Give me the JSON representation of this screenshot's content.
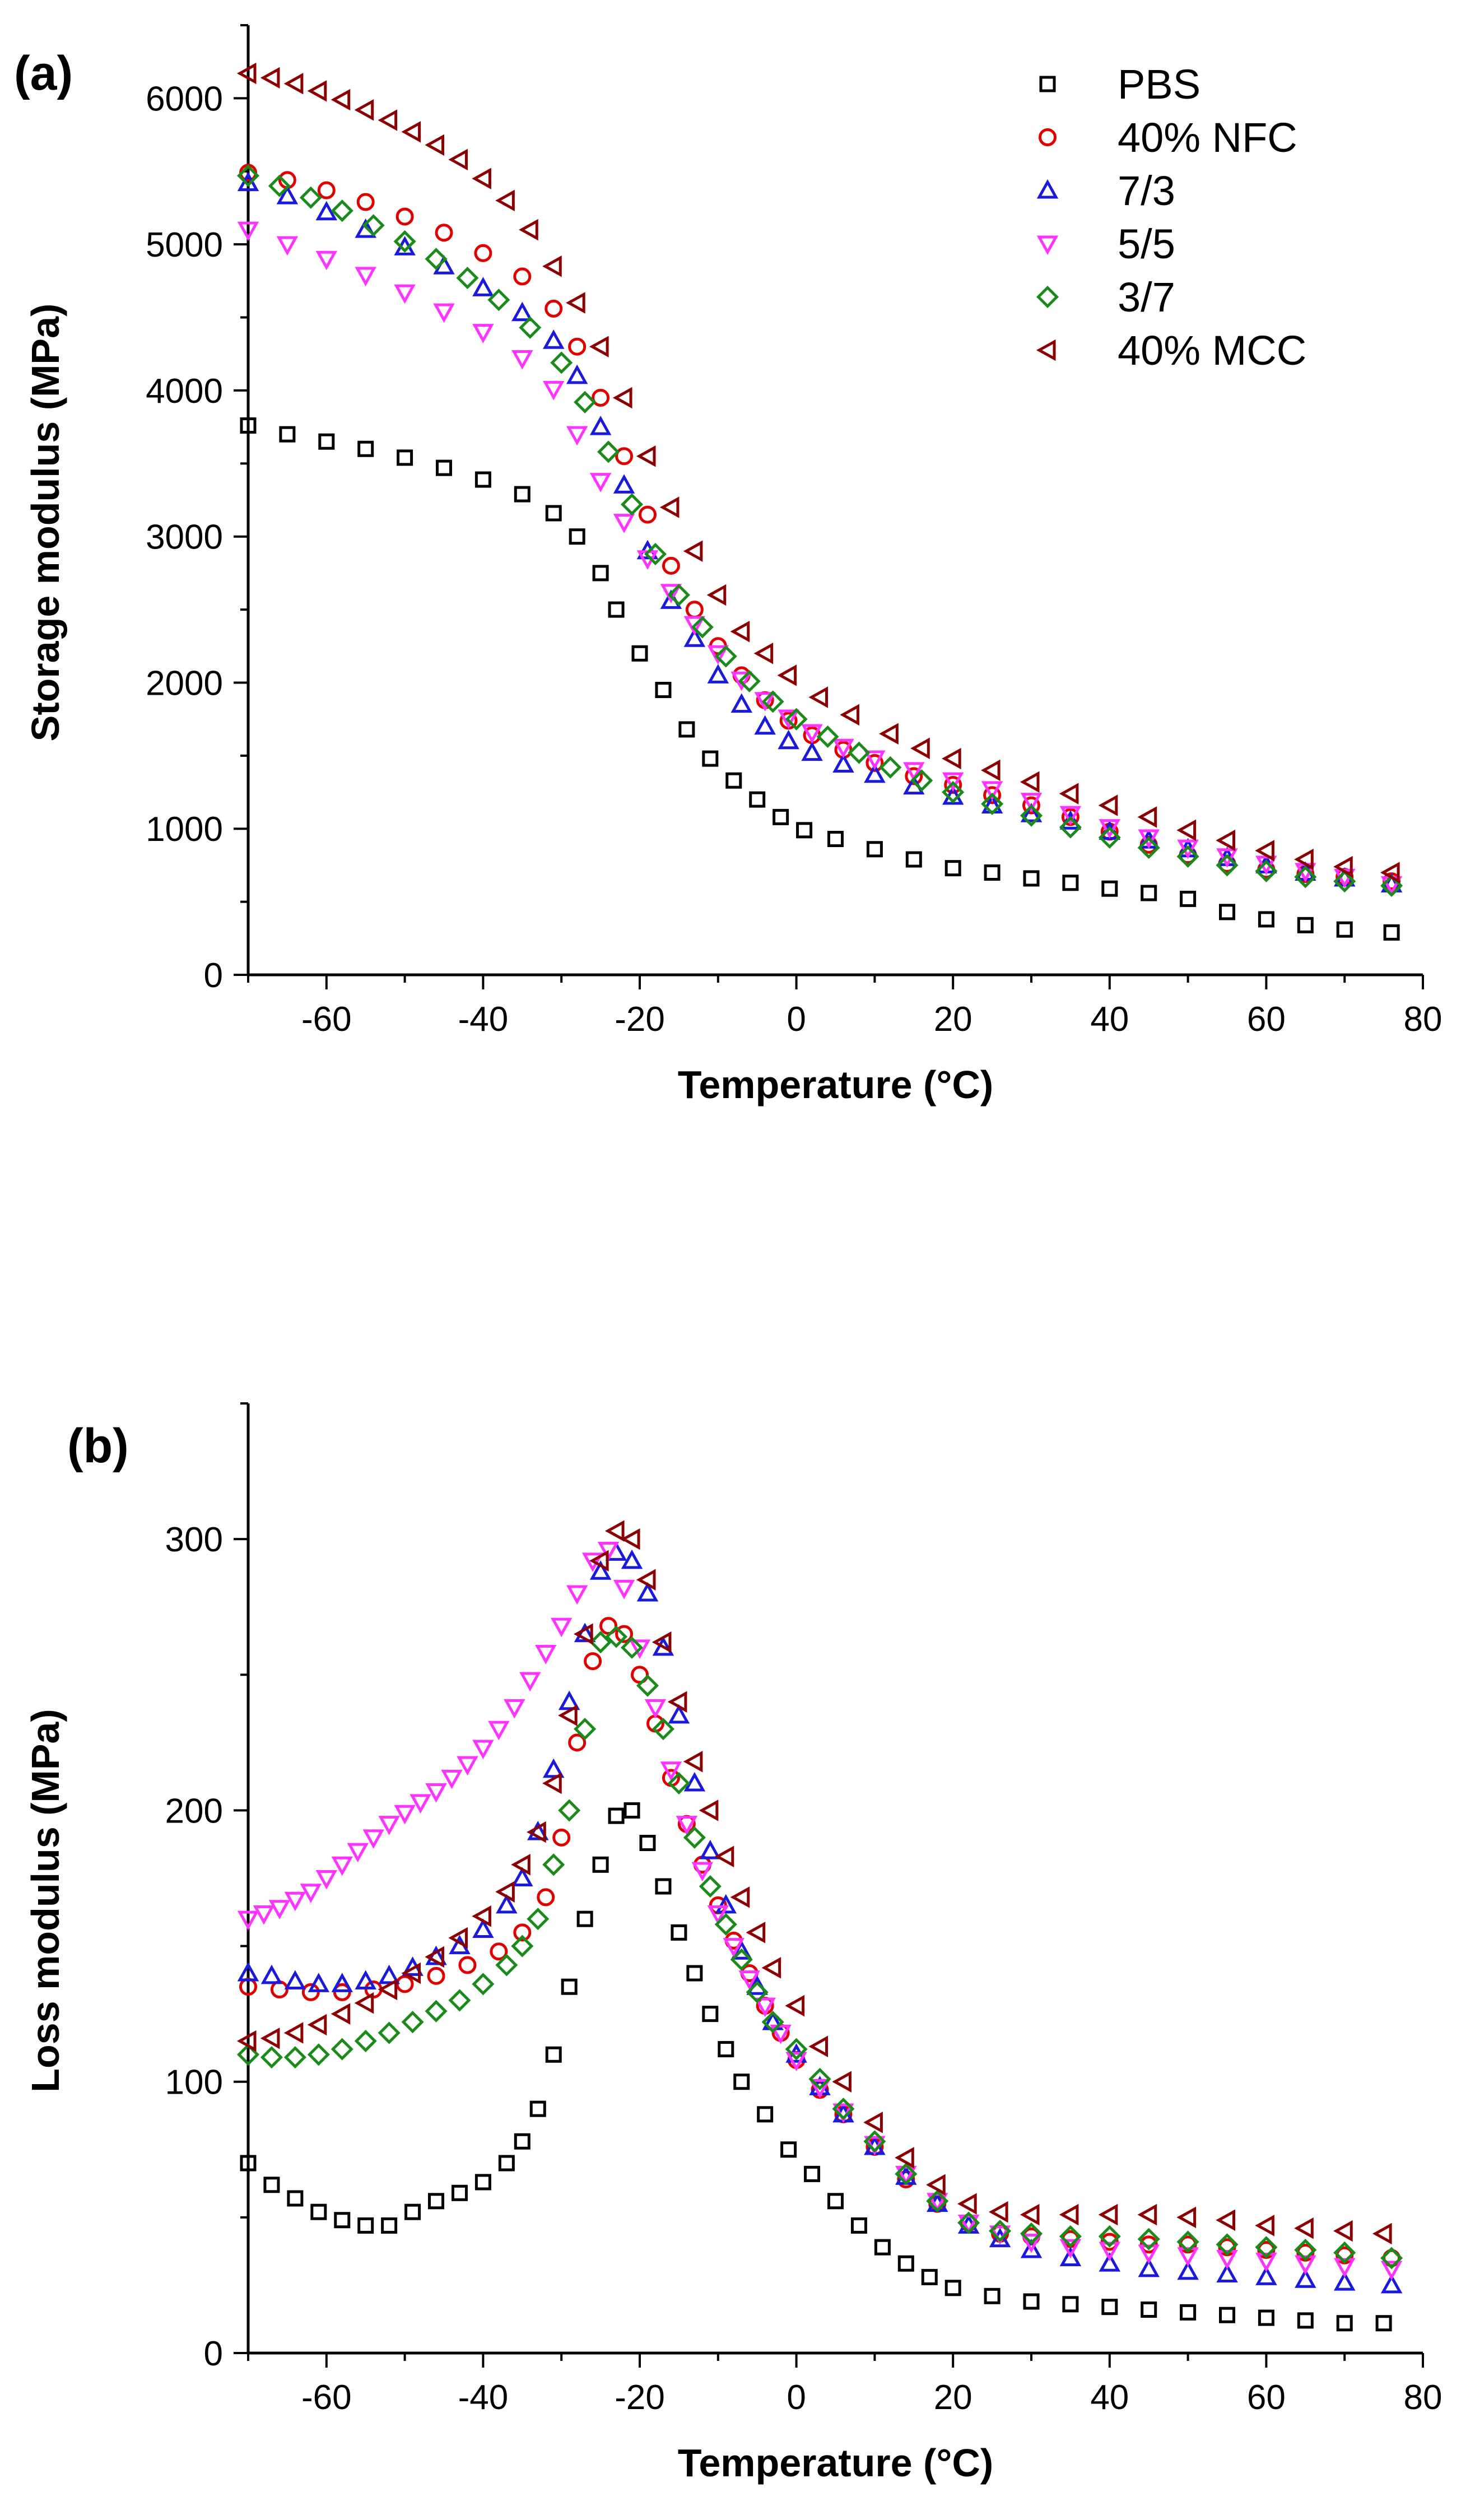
{
  "chart_data": [
    {
      "type": "scatter",
      "panel_label": "(a)",
      "title": "",
      "xlabel": "Temperature (°C)",
      "ylabel": "Storage modulus (MPa)",
      "xlim": [
        -70,
        80
      ],
      "ylim": [
        0,
        6500
      ],
      "xticks": [
        -60,
        -40,
        -20,
        0,
        20,
        40,
        60,
        80
      ],
      "yticks": [
        0,
        1000,
        2000,
        3000,
        4000,
        5000,
        6000
      ],
      "legend_position": "top-right",
      "series": [
        {
          "name": "PBS",
          "marker": "square",
          "color": "#000000",
          "x": [
            -70,
            -65,
            -60,
            -55,
            -50,
            -45,
            -40,
            -35,
            -31,
            -28,
            -25,
            -23,
            -20,
            -17,
            -14,
            -11,
            -8,
            -5,
            -2,
            1,
            5,
            10,
            15,
            20,
            25,
            30,
            35,
            40,
            45,
            50,
            55,
            60,
            65,
            70,
            76
          ],
          "y": [
            3760,
            3700,
            3650,
            3600,
            3540,
            3470,
            3390,
            3290,
            3160,
            3000,
            2750,
            2500,
            2200,
            1950,
            1680,
            1480,
            1330,
            1200,
            1080,
            990,
            930,
            860,
            790,
            730,
            700,
            660,
            630,
            590,
            560,
            520,
            430,
            380,
            340,
            310,
            290
          ]
        },
        {
          "name": "40% NFC",
          "marker": "circle",
          "color": "#e00000",
          "x": [
            -70,
            -65,
            -60,
            -55,
            -50,
            -45,
            -40,
            -35,
            -31,
            -28,
            -25,
            -22,
            -19,
            -16,
            -13,
            -10,
            -7,
            -4,
            -1,
            2,
            6,
            10,
            15,
            20,
            25,
            30,
            35,
            40,
            45,
            50,
            55,
            60,
            65,
            70,
            76
          ],
          "y": [
            5490,
            5440,
            5370,
            5290,
            5190,
            5080,
            4940,
            4780,
            4560,
            4300,
            3950,
            3550,
            3150,
            2800,
            2500,
            2250,
            2050,
            1880,
            1740,
            1640,
            1540,
            1450,
            1360,
            1300,
            1230,
            1160,
            1080,
            980,
            890,
            820,
            760,
            720,
            690,
            670,
            640
          ]
        },
        {
          "name": "7/3",
          "marker": "triangle-up",
          "color": "#1a1adb",
          "x": [
            -70,
            -65,
            -60,
            -55,
            -50,
            -45,
            -40,
            -35,
            -31,
            -28,
            -25,
            -22,
            -19,
            -16,
            -13,
            -10,
            -7,
            -4,
            -1,
            2,
            6,
            10,
            15,
            20,
            25,
            30,
            35,
            40,
            45,
            50,
            55,
            60,
            65,
            70,
            76
          ],
          "y": [
            5420,
            5330,
            5220,
            5100,
            4980,
            4850,
            4700,
            4530,
            4340,
            4100,
            3750,
            3350,
            2900,
            2560,
            2300,
            2050,
            1850,
            1700,
            1600,
            1520,
            1440,
            1370,
            1290,
            1220,
            1160,
            1100,
            1050,
            980,
            920,
            860,
            800,
            750,
            700,
            660,
            620
          ]
        },
        {
          "name": "5/5",
          "marker": "triangle-down",
          "color": "#ff33ff",
          "x": [
            -70,
            -65,
            -60,
            -55,
            -50,
            -45,
            -40,
            -35,
            -31,
            -28,
            -25,
            -22,
            -19,
            -16,
            -13,
            -10,
            -7,
            -4,
            -1,
            2,
            6,
            10,
            15,
            20,
            25,
            30,
            35,
            40,
            45,
            50,
            55,
            60,
            65,
            70,
            76
          ],
          "y": [
            5100,
            5000,
            4900,
            4790,
            4670,
            4540,
            4400,
            4220,
            4010,
            3700,
            3380,
            3100,
            2850,
            2620,
            2400,
            2200,
            2020,
            1880,
            1760,
            1660,
            1560,
            1480,
            1400,
            1330,
            1270,
            1190,
            1100,
            1010,
            940,
            870,
            810,
            760,
            710,
            670,
            620
          ]
        },
        {
          "name": "3/7",
          "marker": "diamond",
          "color": "#1a8a1a",
          "x": [
            -70,
            -66,
            -62,
            -58,
            -54,
            -50,
            -46,
            -42,
            -38,
            -34,
            -30,
            -27,
            -24,
            -21,
            -18,
            -15,
            -12,
            -9,
            -6,
            -3,
            0,
            4,
            8,
            12,
            16,
            20,
            25,
            30,
            35,
            40,
            45,
            50,
            55,
            60,
            65,
            70,
            76
          ],
          "y": [
            5470,
            5400,
            5320,
            5230,
            5130,
            5020,
            4900,
            4770,
            4620,
            4430,
            4190,
            3920,
            3580,
            3220,
            2880,
            2600,
            2380,
            2180,
            2010,
            1870,
            1750,
            1630,
            1520,
            1420,
            1330,
            1250,
            1170,
            1090,
            1010,
            940,
            870,
            810,
            750,
            710,
            670,
            640,
            610
          ]
        },
        {
          "name": "40% MCC",
          "marker": "triangle-left",
          "color": "#8b0000",
          "x": [
            -70,
            -67,
            -64,
            -61,
            -58,
            -55,
            -52,
            -49,
            -46,
            -43,
            -40,
            -37,
            -34,
            -31,
            -28,
            -25,
            -22,
            -19,
            -16,
            -13,
            -10,
            -7,
            -4,
            -1,
            3,
            7,
            12,
            16,
            20,
            25,
            30,
            35,
            40,
            45,
            50,
            55,
            60,
            65,
            70,
            76
          ],
          "y": [
            6170,
            6140,
            6100,
            6050,
            5990,
            5920,
            5850,
            5770,
            5680,
            5580,
            5450,
            5300,
            5100,
            4850,
            4600,
            4300,
            3950,
            3550,
            3200,
            2900,
            2600,
            2350,
            2200,
            2050,
            1900,
            1780,
            1650,
            1550,
            1480,
            1400,
            1320,
            1240,
            1160,
            1080,
            990,
            920,
            850,
            790,
            740,
            700
          ]
        }
      ]
    },
    {
      "type": "scatter",
      "panel_label": "(b)",
      "title": "",
      "xlabel": "Temperature (°C)",
      "ylabel": "Loss modulus (MPa)",
      "xlim": [
        -70,
        80
      ],
      "ylim": [
        0,
        350
      ],
      "xticks": [
        -60,
        -40,
        -20,
        0,
        20,
        40,
        60,
        80
      ],
      "yticks": [
        0,
        100,
        200,
        300
      ],
      "series": [
        {
          "name": "PBS",
          "marker": "square",
          "color": "#000000",
          "x": [
            -70,
            -67,
            -64,
            -61,
            -58,
            -55,
            -52,
            -49,
            -46,
            -43,
            -40,
            -37,
            -35,
            -33,
            -31,
            -29,
            -27,
            -25,
            -23,
            -21,
            -19,
            -17,
            -15,
            -13,
            -11,
            -9,
            -7,
            -4,
            -1,
            2,
            5,
            8,
            11,
            14,
            17,
            20,
            25,
            30,
            35,
            40,
            45,
            50,
            55,
            60,
            65,
            70,
            75
          ],
          "y": [
            70,
            62,
            57,
            52,
            49,
            47,
            47,
            52,
            56,
            59,
            63,
            70,
            78,
            90,
            110,
            135,
            160,
            180,
            198,
            200,
            188,
            172,
            155,
            140,
            125,
            112,
            100,
            88,
            75,
            66,
            56,
            47,
            39,
            33,
            28,
            24,
            21,
            19,
            18,
            17,
            16,
            15,
            14,
            13,
            12,
            11,
            11
          ]
        },
        {
          "name": "40% NFC",
          "marker": "circle",
          "color": "#e00000",
          "x": [
            -70,
            -66,
            -62,
            -58,
            -54,
            -50,
            -46,
            -42,
            -38,
            -35,
            -32,
            -30,
            -28,
            -26,
            -24,
            -22,
            -20,
            -18,
            -16,
            -14,
            -12,
            -10,
            -8,
            -6,
            -4,
            -2,
            0,
            3,
            6,
            10,
            14,
            18,
            22,
            26,
            30,
            35,
            40,
            45,
            50,
            55,
            60,
            65,
            70,
            76
          ],
          "y": [
            135,
            134,
            133,
            133,
            134,
            136,
            139,
            143,
            148,
            155,
            168,
            190,
            225,
            255,
            268,
            265,
            250,
            232,
            212,
            195,
            180,
            165,
            152,
            140,
            128,
            118,
            108,
            97,
            88,
            76,
            64,
            55,
            48,
            44,
            43,
            42,
            41,
            40,
            40,
            39,
            38,
            37,
            36,
            35
          ]
        },
        {
          "name": "7/3",
          "marker": "triangle-up",
          "color": "#1a1adb",
          "x": [
            -70,
            -67,
            -64,
            -61,
            -58,
            -55,
            -52,
            -49,
            -46,
            -43,
            -40,
            -37,
            -35,
            -33,
            -31,
            -29,
            -27,
            -25,
            -23,
            -21,
            -19,
            -17,
            -15,
            -13,
            -11,
            -9,
            -7,
            -5,
            -3,
            0,
            3,
            6,
            10,
            14,
            18,
            22,
            26,
            30,
            35,
            40,
            45,
            50,
            55,
            60,
            65,
            70,
            76
          ],
          "y": [
            140,
            139,
            137,
            136,
            136,
            137,
            139,
            142,
            146,
            150,
            156,
            165,
            175,
            192,
            215,
            240,
            265,
            288,
            295,
            292,
            280,
            260,
            235,
            210,
            185,
            165,
            148,
            135,
            122,
            110,
            98,
            88,
            76,
            65,
            55,
            47,
            42,
            38,
            35,
            33,
            31,
            30,
            29,
            28,
            27,
            26,
            25
          ]
        },
        {
          "name": "5/5",
          "marker": "triangle-down",
          "color": "#ff33ff",
          "x": [
            -70,
            -68,
            -66,
            -64,
            -62,
            -60,
            -58,
            -56,
            -54,
            -52,
            -50,
            -48,
            -46,
            -44,
            -42,
            -40,
            -38,
            -36,
            -34,
            -32,
            -30,
            -28,
            -26,
            -24,
            -22,
            -20,
            -18,
            -16,
            -14,
            -12,
            -10,
            -8,
            -6,
            -4,
            -2,
            0,
            3,
            6,
            10,
            14,
            18,
            22,
            26,
            30,
            35,
            40,
            45,
            50,
            55,
            60,
            65,
            70,
            76
          ],
          "y": [
            160,
            162,
            164,
            167,
            170,
            175,
            180,
            185,
            190,
            195,
            199,
            203,
            207,
            212,
            217,
            223,
            230,
            238,
            248,
            258,
            268,
            280,
            292,
            296,
            282,
            260,
            238,
            215,
            195,
            178,
            162,
            150,
            138,
            128,
            118,
            108,
            98,
            89,
            77,
            66,
            56,
            48,
            44,
            41,
            39,
            38,
            37,
            36,
            35,
            34,
            33,
            32,
            31
          ]
        },
        {
          "name": "3/7",
          "marker": "diamond",
          "color": "#1a8a1a",
          "x": [
            -70,
            -67,
            -64,
            -61,
            -58,
            -55,
            -52,
            -49,
            -46,
            -43,
            -40,
            -37,
            -35,
            -33,
            -31,
            -29,
            -27,
            -25,
            -23,
            -21,
            -19,
            -17,
            -15,
            -13,
            -11,
            -9,
            -7,
            -5,
            -3,
            0,
            3,
            6,
            10,
            14,
            18,
            22,
            26,
            30,
            35,
            40,
            45,
            50,
            55,
            60,
            65,
            70,
            76
          ],
          "y": [
            110,
            109,
            109,
            110,
            112,
            115,
            118,
            122,
            126,
            130,
            136,
            143,
            150,
            160,
            180,
            200,
            230,
            262,
            264,
            260,
            246,
            230,
            210,
            190,
            172,
            158,
            145,
            133,
            122,
            112,
            101,
            90,
            78,
            66,
            56,
            48,
            45,
            44,
            43,
            43,
            42,
            41,
            40,
            39,
            38,
            37,
            35
          ]
        },
        {
          "name": "40% MCC",
          "marker": "triangle-left",
          "color": "#8b0000",
          "x": [
            -70,
            -67,
            -64,
            -61,
            -58,
            -55,
            -52,
            -49,
            -46,
            -43,
            -40,
            -37,
            -35,
            -33,
            -31,
            -29,
            -27,
            -25,
            -23,
            -21,
            -19,
            -17,
            -15,
            -13,
            -11,
            -9,
            -7,
            -5,
            -3,
            0,
            3,
            6,
            10,
            14,
            18,
            22,
            26,
            30,
            35,
            40,
            45,
            50,
            55,
            60,
            65,
            70,
            75
          ],
          "y": [
            115,
            116,
            118,
            121,
            125,
            129,
            134,
            140,
            146,
            153,
            161,
            170,
            180,
            192,
            210,
            235,
            265,
            292,
            303,
            300,
            285,
            262,
            240,
            218,
            200,
            183,
            168,
            155,
            142,
            128,
            113,
            100,
            85,
            72,
            62,
            55,
            52,
            51,
            51,
            51,
            51,
            50,
            49,
            47,
            46,
            45,
            44
          ]
        }
      ]
    }
  ]
}
